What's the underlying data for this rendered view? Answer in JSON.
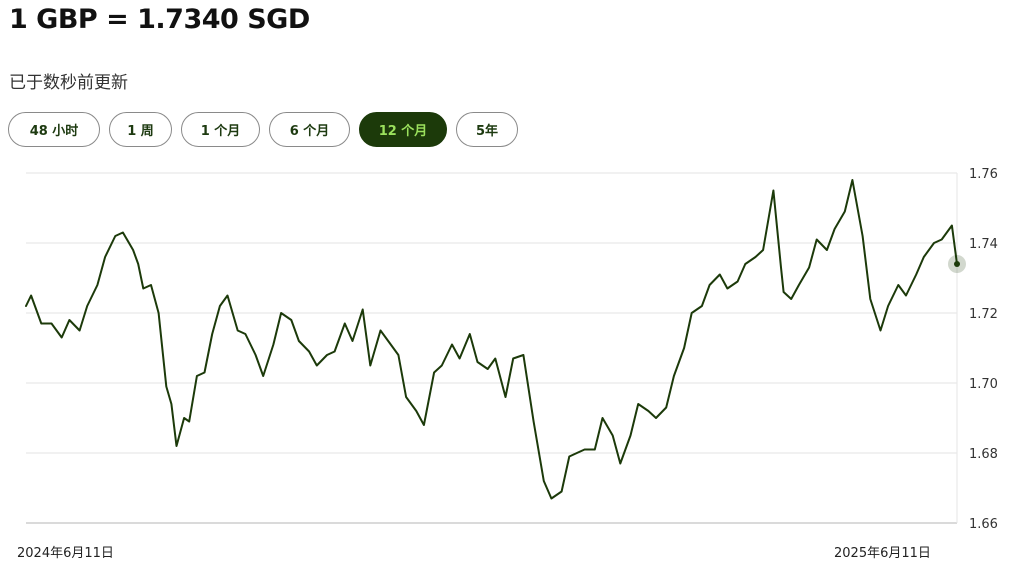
{
  "header": {
    "rate": "1 GBP = 1.7340 SGD",
    "updated": "已于数秒前更新"
  },
  "range_tabs": [
    {
      "label": "48 小时",
      "active": false
    },
    {
      "label": "1 周",
      "active": false
    },
    {
      "label": "1 个月",
      "active": false
    },
    {
      "label": "6 个月",
      "active": false
    },
    {
      "label": "12 个月",
      "active": true
    },
    {
      "label": "5年",
      "active": false
    }
  ],
  "colors": {
    "line": "#1c3a0a",
    "grid": "#e3e3e3",
    "axis_text": "#333333",
    "active_tab_bg": "#1c3a0a",
    "active_tab_text": "#9be15d"
  },
  "chart_data": {
    "type": "line",
    "title": "",
    "xlabel": "",
    "ylabel": "",
    "ylim": [
      1.66,
      1.76
    ],
    "yticks": [
      "1.76",
      "1.74",
      "1.72",
      "1.70",
      "1.68",
      "1.66"
    ],
    "x_tick_labels": [
      "2024年6月11日",
      "2025年6月11日"
    ],
    "grid": true,
    "y_axis_side": "right",
    "series": [
      {
        "x": [
          "2024-06-11",
          "2024-06-13",
          "2024-06-17",
          "2024-06-21",
          "2024-06-25",
          "2024-06-28",
          "2024-07-02",
          "2024-07-05",
          "2024-07-09",
          "2024-07-12",
          "2024-07-16",
          "2024-07-19",
          "2024-07-23",
          "2024-07-25",
          "2024-07-27",
          "2024-07-30",
          "2024-08-02",
          "2024-08-05",
          "2024-08-07",
          "2024-08-09",
          "2024-08-12",
          "2024-08-14",
          "2024-08-17",
          "2024-08-20",
          "2024-08-23",
          "2024-08-26",
          "2024-08-29",
          "2024-09-02",
          "2024-09-05",
          "2024-09-09",
          "2024-09-12",
          "2024-09-16",
          "2024-09-19",
          "2024-09-23",
          "2024-09-26",
          "2024-09-30",
          "2024-10-03",
          "2024-10-07",
          "2024-10-10",
          "2024-10-14",
          "2024-10-17",
          "2024-10-21",
          "2024-10-24",
          "2024-10-28",
          "2024-10-31",
          "2024-11-04",
          "2024-11-07",
          "2024-11-11",
          "2024-11-14",
          "2024-11-18",
          "2024-11-21",
          "2024-11-25",
          "2024-11-28",
          "2024-12-02",
          "2024-12-05",
          "2024-12-09",
          "2024-12-12",
          "2024-12-16",
          "2024-12-19",
          "2024-12-23",
          "2024-12-27",
          "2024-12-31",
          "2025-01-03",
          "2025-01-07",
          "2025-01-10",
          "2025-01-13",
          "2025-01-16",
          "2025-01-20",
          "2025-01-23",
          "2025-01-27",
          "2025-01-30",
          "2025-02-03",
          "2025-02-06",
          "2025-02-10",
          "2025-02-13",
          "2025-02-17",
          "2025-02-20",
          "2025-02-24",
          "2025-02-27",
          "2025-03-03",
          "2025-03-06",
          "2025-03-10",
          "2025-03-13",
          "2025-03-17",
          "2025-03-20",
          "2025-03-24",
          "2025-03-27",
          "2025-03-31",
          "2025-04-03",
          "2025-04-04",
          "2025-04-07",
          "2025-04-10",
          "2025-04-14",
          "2025-04-17",
          "2025-04-21",
          "2025-04-24",
          "2025-04-28",
          "2025-05-01",
          "2025-05-05",
          "2025-05-08",
          "2025-05-12",
          "2025-05-15",
          "2025-05-19",
          "2025-05-22",
          "2025-05-26",
          "2025-05-29",
          "2025-06-02",
          "2025-06-05",
          "2025-06-09",
          "2025-06-11"
        ],
        "values": [
          1.722,
          1.725,
          1.717,
          1.717,
          1.713,
          1.718,
          1.715,
          1.722,
          1.728,
          1.736,
          1.742,
          1.743,
          1.738,
          1.734,
          1.727,
          1.728,
          1.72,
          1.699,
          1.694,
          1.682,
          1.69,
          1.689,
          1.702,
          1.703,
          1.714,
          1.722,
          1.725,
          1.715,
          1.714,
          1.708,
          1.702,
          1.711,
          1.72,
          1.718,
          1.712,
          1.709,
          1.705,
          1.708,
          1.709,
          1.717,
          1.712,
          1.721,
          1.705,
          1.715,
          1.712,
          1.708,
          1.696,
          1.692,
          1.688,
          1.703,
          1.705,
          1.711,
          1.707,
          1.714,
          1.706,
          1.704,
          1.707,
          1.696,
          1.707,
          1.708,
          1.689,
          1.672,
          1.667,
          1.669,
          1.679,
          1.68,
          1.681,
          1.681,
          1.69,
          1.685,
          1.677,
          1.685,
          1.694,
          1.692,
          1.69,
          1.693,
          1.702,
          1.71,
          1.72,
          1.722,
          1.728,
          1.731,
          1.727,
          1.729,
          1.734,
          1.736,
          1.738,
          1.755,
          1.733,
          1.726,
          1.724,
          1.728,
          1.733,
          1.741,
          1.738,
          1.744,
          1.749,
          1.758,
          1.742,
          1.724,
          1.715,
          1.722,
          1.728,
          1.725,
          1.731,
          1.736,
          1.74,
          1.741,
          1.745,
          1.734
        ]
      }
    ]
  }
}
